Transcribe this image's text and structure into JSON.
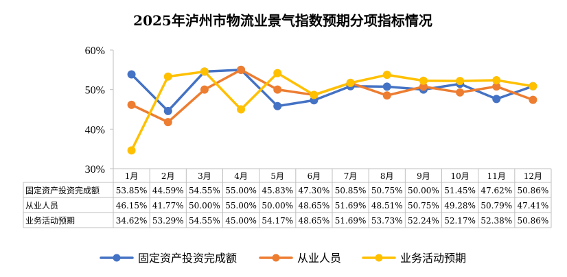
{
  "chart_data": {
    "type": "line",
    "title": "2025年泸州市物流业景气指数预期分项指标情况",
    "categories": [
      "1月",
      "2月",
      "3月",
      "4月",
      "5月",
      "6月",
      "7月",
      "8月",
      "9月",
      "10月",
      "11月",
      "12月"
    ],
    "ylim": [
      30,
      60
    ],
    "yticks": [
      30,
      40,
      50,
      60
    ],
    "ytick_labels": [
      "30%",
      "40%",
      "50%",
      "60%"
    ],
    "grid": false,
    "legend_position": "bottom",
    "series": [
      {
        "name": "固定资产投资完成额",
        "color": "#4472C4",
        "values": [
          53.85,
          44.59,
          54.55,
          55.0,
          45.83,
          47.3,
          50.85,
          50.75,
          50.0,
          51.45,
          47.62,
          50.86
        ],
        "labels": [
          "53.85%",
          "44.59%",
          "54.55%",
          "55.00%",
          "45.83%",
          "47.30%",
          "50.85%",
          "50.75%",
          "50.00%",
          "51.45%",
          "47.62%",
          "50.86%"
        ]
      },
      {
        "name": "从业人员",
        "color": "#ED7D31",
        "values": [
          46.15,
          41.77,
          50.0,
          55.0,
          50.0,
          48.65,
          51.69,
          48.51,
          50.75,
          49.28,
          50.79,
          47.41
        ],
        "labels": [
          "46.15%",
          "41.77%",
          "50.00%",
          "55.00%",
          "50.00%",
          "48.65%",
          "51.69%",
          "48.51%",
          "50.75%",
          "49.28%",
          "50.79%",
          "47.41%"
        ]
      },
      {
        "name": "业务活动预期",
        "color": "#FFC000",
        "values": [
          34.62,
          53.29,
          54.55,
          45.0,
          54.17,
          48.65,
          51.69,
          53.73,
          52.24,
          52.17,
          52.38,
          50.86
        ],
        "labels": [
          "34.62%",
          "53.29%",
          "54.55%",
          "45.00%",
          "54.17%",
          "48.65%",
          "51.69%",
          "53.73%",
          "52.24%",
          "52.17%",
          "52.38%",
          "50.86%"
        ]
      }
    ]
  }
}
